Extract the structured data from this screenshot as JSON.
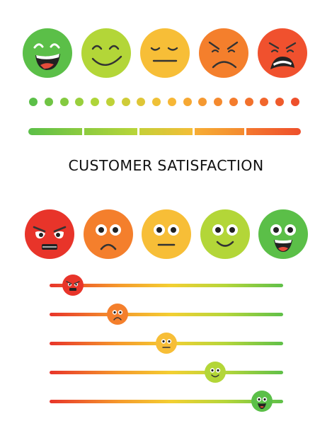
{
  "title": "CUSTOMER SATISFACTION",
  "colors": {
    "red": "#e8342a",
    "orange_red": "#f46a2c",
    "orange": "#f59b2c",
    "yellow": "#f7be37",
    "yellow_green": "#b3d638",
    "green": "#5bbf48",
    "dark_feature": "#333333"
  },
  "top_faces": [
    {
      "mood": "laughing",
      "icon": "laughing-face-icon"
    },
    {
      "mood": "content",
      "icon": "content-face-icon"
    },
    {
      "mood": "neutral",
      "icon": "neutral-face-icon"
    },
    {
      "mood": "annoyed",
      "icon": "annoyed-face-icon"
    },
    {
      "mood": "furious",
      "icon": "furious-face-icon"
    }
  ],
  "dot_scale": {
    "count": 18
  },
  "segment_bar": {
    "segments": 5
  },
  "rating_faces": [
    {
      "mood": "angry",
      "icon": "angry-face-icon"
    },
    {
      "mood": "sad",
      "icon": "sad-face-icon"
    },
    {
      "mood": "neutral",
      "icon": "neutral-face-icon"
    },
    {
      "mood": "happy",
      "icon": "happy-face-icon"
    },
    {
      "mood": "very happy",
      "icon": "very-happy-face-icon"
    }
  ],
  "sliders": [
    {
      "mood": "angry",
      "level": 0.1
    },
    {
      "mood": "sad",
      "level": 0.29
    },
    {
      "mood": "neutral",
      "level": 0.5
    },
    {
      "mood": "happy",
      "level": 0.71
    },
    {
      "mood": "very happy",
      "level": 0.91
    }
  ]
}
